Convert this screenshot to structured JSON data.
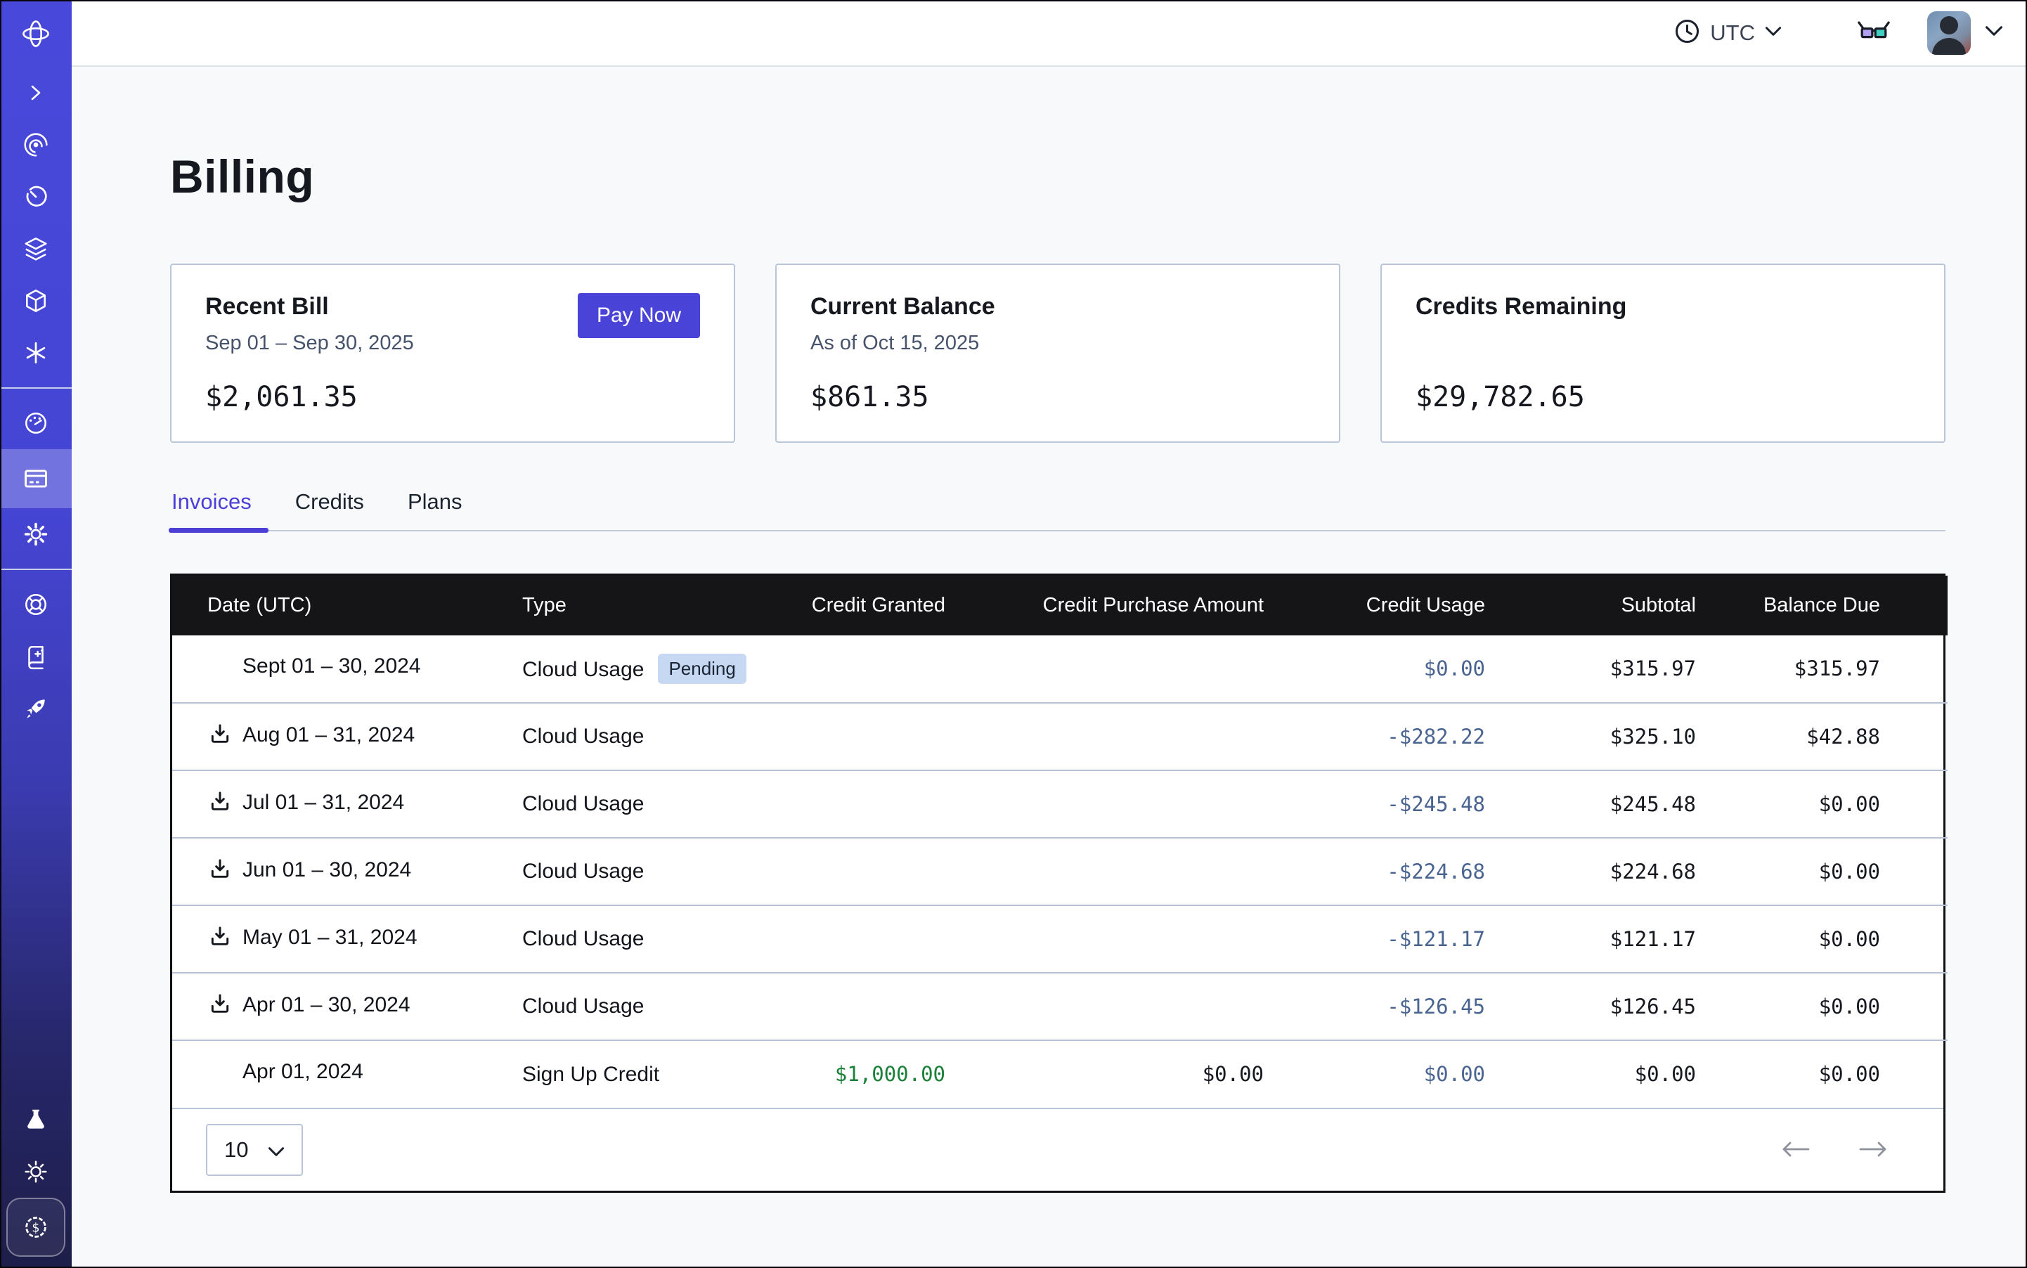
{
  "topbar": {
    "timezone": "UTC",
    "icons": [
      "clock-icon",
      "chevron-down-icon",
      "3d-glasses-icon",
      "avatar",
      "chevron-down-icon"
    ]
  },
  "sidebar": {
    "icons": [
      "logo-orbit-icon",
      "chevron-right-icon",
      "observe-icon",
      "timer-icon",
      "layers-icon",
      "cube-icon",
      "asterisk-icon",
      "gauge-icon",
      "billing-card-icon",
      "settings-gear-icon",
      "lifebuoy-icon",
      "docs-book-icon",
      "rocket-icon",
      "flask-icon",
      "sun-icon",
      "dollar-badge-icon"
    ],
    "active_item": "billing-card-icon"
  },
  "page": {
    "title": "Billing"
  },
  "cards": [
    {
      "title": "Recent Bill",
      "subtitle": "Sep 01 – Sep 30, 2025",
      "amount": "$2,061.35",
      "action": "Pay Now"
    },
    {
      "title": "Current Balance",
      "subtitle": "As of Oct 15, 2025",
      "amount": "$861.35"
    },
    {
      "title": "Credits Remaining",
      "subtitle": "",
      "amount": "$29,782.65"
    }
  ],
  "tabs": [
    {
      "label": "Invoices",
      "active": true
    },
    {
      "label": "Credits",
      "active": false
    },
    {
      "label": "Plans",
      "active": false
    }
  ],
  "table": {
    "columns": [
      "Date (UTC)",
      "Type",
      "Credit Granted",
      "Credit Purchase Amount",
      "Credit Usage",
      "Subtotal",
      "Balance Due"
    ],
    "rows": [
      {
        "date": "Sept 01 – 30, 2024",
        "downloadable": false,
        "type": "Cloud Usage",
        "badge": "Pending",
        "credit_granted": "",
        "credit_purchase_amount": "",
        "credit_usage": "$0.00",
        "subtotal": "$315.97",
        "balance_due": "$315.97"
      },
      {
        "date": "Aug 01 – 31, 2024",
        "downloadable": true,
        "type": "Cloud Usage",
        "badge": null,
        "credit_granted": "",
        "credit_purchase_amount": "",
        "credit_usage": "-$282.22",
        "subtotal": "$325.10",
        "balance_due": "$42.88"
      },
      {
        "date": "Jul 01 – 31, 2024",
        "downloadable": true,
        "type": "Cloud Usage",
        "badge": null,
        "credit_granted": "",
        "credit_purchase_amount": "",
        "credit_usage": "-$245.48",
        "subtotal": "$245.48",
        "balance_due": "$0.00"
      },
      {
        "date": "Jun 01 – 30, 2024",
        "downloadable": true,
        "type": "Cloud Usage",
        "badge": null,
        "credit_granted": "",
        "credit_purchase_amount": "",
        "credit_usage": "-$224.68",
        "subtotal": "$224.68",
        "balance_due": "$0.00"
      },
      {
        "date": "May 01 – 31, 2024",
        "downloadable": true,
        "type": "Cloud Usage",
        "badge": null,
        "credit_granted": "",
        "credit_purchase_amount": "",
        "credit_usage": "-$121.17",
        "subtotal": "$121.17",
        "balance_due": "$0.00"
      },
      {
        "date": "Apr 01 – 30, 2024",
        "downloadable": true,
        "type": "Cloud Usage",
        "badge": null,
        "credit_granted": "",
        "credit_purchase_amount": "",
        "credit_usage": "-$126.45",
        "subtotal": "$126.45",
        "balance_due": "$0.00"
      },
      {
        "date": "Apr 01, 2024",
        "downloadable": false,
        "type": "Sign Up Credit",
        "badge": null,
        "credit_granted": "$1,000.00",
        "credit_purchase_amount": "$0.00",
        "credit_usage": "$0.00",
        "subtotal": "$0.00",
        "balance_due": "$0.00"
      }
    ],
    "pagination": {
      "page_size": "10",
      "prev_icon": "arrow-left-icon",
      "next_icon": "arrow-right-icon"
    }
  },
  "colors": {
    "accent_indigo": "#4a43d8",
    "active_tab": "#4b3fd6",
    "table_header_bg": "#151517",
    "credit_usage_text": "#4a6491",
    "credit_granted_text": "#1a7f37",
    "pending_badge_bg": "#c7d8f3",
    "row_divider": "#b7c3d6",
    "card_border": "#b9c6da",
    "sidebar_top": "#4848da",
    "sidebar_bottom": "#1e1e49",
    "page_bg": "#f8f9fb"
  }
}
